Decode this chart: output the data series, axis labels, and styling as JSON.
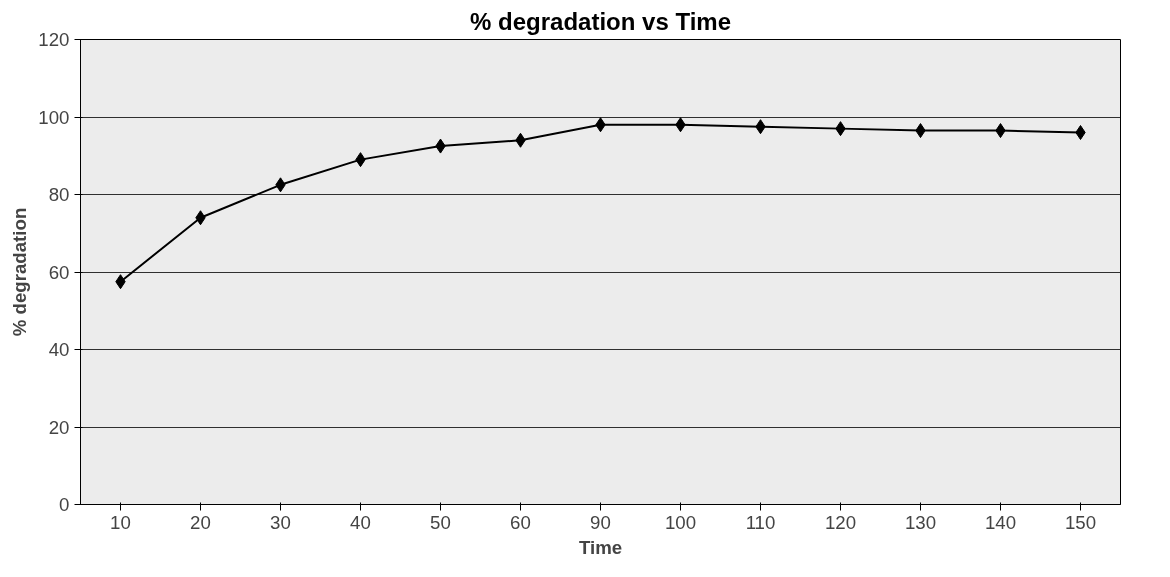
{
  "chart_data": {
    "type": "line",
    "title": "% degradation vs Time",
    "xlabel": "Time",
    "ylabel": "% degradation",
    "categories": [
      "10",
      "20",
      "30",
      "40",
      "50",
      "60",
      "90",
      "100",
      "110",
      "120",
      "130",
      "140",
      "150"
    ],
    "series": [
      {
        "color": "#000000",
        "values": [
          57.5,
          74,
          82.5,
          89,
          92.5,
          94,
          98,
          98,
          97.5,
          97,
          96.5,
          96.5,
          96
        ]
      }
    ],
    "ylim": [
      0,
      120
    ],
    "yticks": [
      0,
      20,
      40,
      60,
      80,
      100,
      120
    ],
    "grid": "y",
    "marker": "diamond",
    "line_style": "solid"
  }
}
